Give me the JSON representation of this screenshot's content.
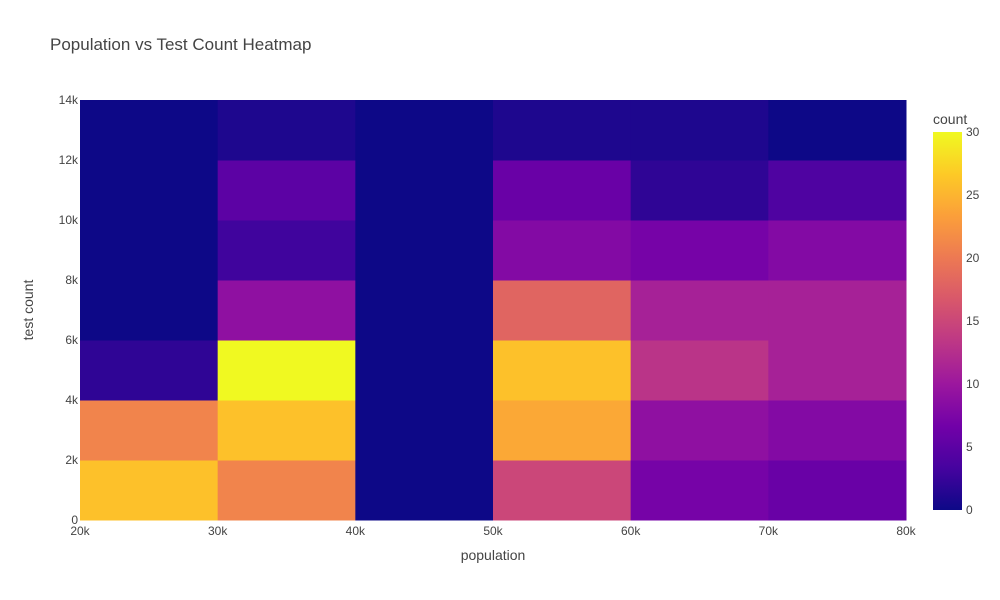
{
  "chart_data": {
    "type": "heatmap",
    "title": "Population vs Test Count Heatmap",
    "xlabel": "population",
    "ylabel": "test count",
    "x_bins": [
      20000,
      30000,
      40000,
      50000,
      60000,
      70000,
      80000
    ],
    "y_bins": [
      0,
      2000,
      4000,
      6000,
      8000,
      10000,
      12000,
      14000
    ],
    "x_tick_labels": [
      "20k",
      "30k",
      "40k",
      "50k",
      "60k",
      "70k",
      "80k"
    ],
    "y_tick_labels": [
      "0",
      "2k",
      "4k",
      "6k",
      "8k",
      "10k",
      "12k",
      "14k"
    ],
    "xlim": [
      20000,
      80000
    ],
    "ylim": [
      0,
      14000
    ],
    "z_rows_bottom_to_top": [
      [
        26,
        21,
        0,
        15,
        7,
        6
      ],
      [
        21,
        26,
        0,
        24,
        9,
        8
      ],
      [
        2,
        30,
        0,
        26,
        13,
        11
      ],
      [
        0,
        9,
        0,
        18,
        11,
        11
      ],
      [
        0,
        3,
        0,
        8,
        7,
        8
      ],
      [
        0,
        5,
        0,
        6,
        2,
        4
      ],
      [
        0,
        1,
        0,
        1,
        1,
        0
      ]
    ],
    "colorbar": {
      "title": "count",
      "min": 0,
      "max": 30,
      "ticks": [
        0,
        5,
        10,
        15,
        20,
        25,
        30
      ],
      "colorscale": [
        "#0d0887",
        "#46039f",
        "#7201a8",
        "#9c179e",
        "#bd3786",
        "#d8576b",
        "#ed7953",
        "#fb9f3a",
        "#fdca26",
        "#f0f921"
      ]
    },
    "grid": false
  }
}
